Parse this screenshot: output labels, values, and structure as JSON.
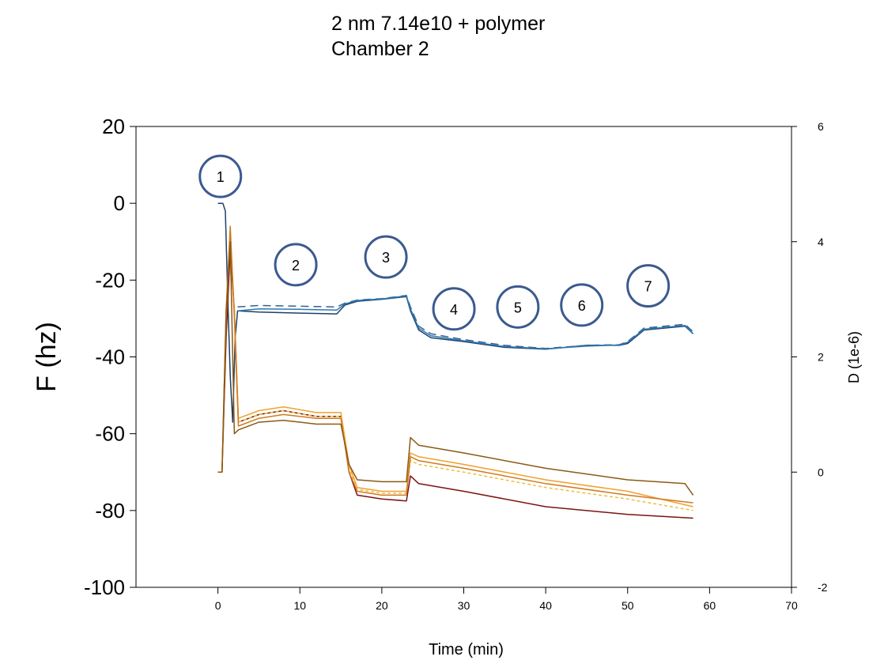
{
  "title": {
    "line1": "2 nm 7.14e10 + polymer",
    "line2": "Chamber 2"
  },
  "chart_data": {
    "type": "line",
    "xlabel": "Time (min)",
    "ylabel": "F (hz)",
    "y2label": "D (1e-6)",
    "xlim": [
      -10,
      70
    ],
    "ylim": [
      -100,
      20
    ],
    "y2lim": [
      -2,
      6
    ],
    "x_ticks": [
      0,
      10,
      20,
      30,
      40,
      50,
      60,
      70
    ],
    "y_ticks": [
      20,
      0,
      -20,
      -40,
      -60,
      -80,
      -100
    ],
    "y2_ticks": [
      6,
      4,
      2,
      0,
      -2
    ],
    "grid": false,
    "annotations": [
      {
        "label": "1",
        "x": 0.3,
        "y": 7
      },
      {
        "label": "2",
        "x": 9.5,
        "y": -16
      },
      {
        "label": "3",
        "x": 20.5,
        "y": -14
      },
      {
        "label": "4",
        "x": 28.8,
        "y": -27.5
      },
      {
        "label": "5",
        "x": 36.6,
        "y": -27
      },
      {
        "label": "6",
        "x": 44.4,
        "y": -26.5
      },
      {
        "label": "7",
        "x": 52.5,
        "y": -21.5
      }
    ],
    "series": [
      {
        "axis": "left",
        "color": "#1f3f6b",
        "points": [
          [
            0,
            0
          ],
          [
            0.6,
            0
          ],
          [
            0.9,
            -2
          ],
          [
            1.2,
            -25
          ],
          [
            1.5,
            -45
          ],
          [
            1.8,
            -57
          ],
          [
            2.1,
            -35
          ],
          [
            2.4,
            -28
          ],
          [
            5,
            -28.3
          ],
          [
            10,
            -28.6
          ],
          [
            14.5,
            -28.8
          ],
          [
            15.5,
            -26.5
          ],
          [
            17,
            -25.5
          ],
          [
            20,
            -25
          ],
          [
            23,
            -24.3
          ],
          [
            23.5,
            -28
          ],
          [
            24.5,
            -33
          ],
          [
            26,
            -35
          ],
          [
            30,
            -36
          ],
          [
            35,
            -37.5
          ],
          [
            40,
            -38
          ],
          [
            45,
            -37
          ],
          [
            49,
            -37
          ],
          [
            50,
            -36.5
          ],
          [
            52,
            -33
          ],
          [
            57,
            -32
          ],
          [
            58,
            -34
          ]
        ]
      },
      {
        "axis": "left",
        "color": "#3c5f8f",
        "dash": "10,6",
        "points": [
          [
            2.4,
            -27
          ],
          [
            5,
            -26.6
          ],
          [
            10,
            -26.8
          ],
          [
            14.5,
            -27
          ],
          [
            15.5,
            -26
          ],
          [
            17,
            -25.2
          ],
          [
            20,
            -24.8
          ],
          [
            23,
            -24
          ],
          [
            23.5,
            -27
          ],
          [
            24.5,
            -32
          ],
          [
            26,
            -34
          ],
          [
            30,
            -35.5
          ],
          [
            35,
            -37
          ],
          [
            40,
            -37.8
          ],
          [
            45,
            -37
          ],
          [
            49,
            -36.8
          ],
          [
            50,
            -36
          ],
          [
            52,
            -32.5
          ],
          [
            57,
            -31.5
          ],
          [
            58,
            -33.5
          ]
        ]
      },
      {
        "axis": "left",
        "color": "#2a7ab0",
        "points": [
          [
            2.4,
            -28
          ],
          [
            5,
            -27.5
          ],
          [
            10,
            -27.6
          ],
          [
            14.5,
            -27.8
          ],
          [
            15.5,
            -26.2
          ],
          [
            17,
            -25.3
          ],
          [
            20,
            -24.9
          ],
          [
            23,
            -24.1
          ],
          [
            23.5,
            -27.5
          ],
          [
            24.5,
            -32.5
          ],
          [
            26,
            -34.5
          ],
          [
            30,
            -35.8
          ],
          [
            35,
            -37.3
          ],
          [
            40,
            -37.9
          ],
          [
            45,
            -37.2
          ],
          [
            49,
            -36.9
          ],
          [
            50,
            -36.2
          ],
          [
            52,
            -32.8
          ],
          [
            57,
            -31.8
          ],
          [
            58,
            -34
          ]
        ]
      },
      {
        "axis": "left",
        "color": "#7a1414",
        "points": [
          [
            0,
            -70
          ],
          [
            0.5,
            -70
          ],
          [
            1,
            -35
          ],
          [
            1.5,
            -12
          ],
          [
            2,
            -28
          ],
          [
            2.5,
            -57
          ],
          [
            5,
            -55
          ],
          [
            8,
            -54
          ],
          [
            12,
            -55.5
          ],
          [
            15,
            -55.5
          ],
          [
            16,
            -70
          ],
          [
            17,
            -76
          ],
          [
            20,
            -77
          ],
          [
            23,
            -77.5
          ],
          [
            23.5,
            -71
          ],
          [
            24.5,
            -73
          ],
          [
            30,
            -75
          ],
          [
            40,
            -79
          ],
          [
            50,
            -81
          ],
          [
            58,
            -82
          ]
        ]
      },
      {
        "axis": "left",
        "color": "#f0a030",
        "points": [
          [
            0,
            -70
          ],
          [
            0.5,
            -70
          ],
          [
            1,
            -30
          ],
          [
            1.5,
            -8
          ],
          [
            2,
            -28
          ],
          [
            2.5,
            -56
          ],
          [
            5,
            -54
          ],
          [
            8,
            -53
          ],
          [
            12,
            -54.5
          ],
          [
            15,
            -54.5
          ],
          [
            16,
            -68
          ],
          [
            17,
            -74
          ],
          [
            20,
            -75
          ],
          [
            23,
            -75
          ],
          [
            23.5,
            -65
          ],
          [
            24.5,
            -66
          ],
          [
            30,
            -68
          ],
          [
            40,
            -72
          ],
          [
            50,
            -75
          ],
          [
            58,
            -79
          ]
        ]
      },
      {
        "axis": "left",
        "color": "#e8c040",
        "dash": "4,3",
        "points": [
          [
            2.5,
            -57
          ],
          [
            5,
            -55
          ],
          [
            8,
            -54
          ],
          [
            12,
            -55.5
          ],
          [
            15,
            -55.5
          ],
          [
            16,
            -69
          ],
          [
            17,
            -74.5
          ],
          [
            20,
            -75.5
          ],
          [
            23,
            -75.5
          ],
          [
            23.5,
            -67
          ],
          [
            24.5,
            -68
          ],
          [
            30,
            -70
          ],
          [
            40,
            -74
          ],
          [
            50,
            -77
          ],
          [
            58,
            -80
          ]
        ]
      },
      {
        "axis": "left",
        "color": "#d07a20",
        "points": [
          [
            0,
            -70
          ],
          [
            0.5,
            -70
          ],
          [
            1,
            -28
          ],
          [
            1.5,
            -6
          ],
          [
            2,
            -30
          ],
          [
            2.5,
            -58
          ],
          [
            5,
            -56
          ],
          [
            8,
            -55
          ],
          [
            12,
            -56
          ],
          [
            15,
            -56
          ],
          [
            16,
            -70
          ],
          [
            17,
            -75
          ],
          [
            20,
            -76
          ],
          [
            23,
            -76
          ],
          [
            23.5,
            -66
          ],
          [
            24.5,
            -67
          ],
          [
            30,
            -69
          ],
          [
            40,
            -73
          ],
          [
            50,
            -76
          ],
          [
            58,
            -78
          ]
        ]
      },
      {
        "axis": "left",
        "color": "#8a5a14",
        "points": [
          [
            0,
            -70
          ],
          [
            0.5,
            -70
          ],
          [
            1,
            -28
          ],
          [
            1.5,
            -10
          ],
          [
            2,
            -60
          ],
          [
            2.5,
            -59
          ],
          [
            5,
            -57
          ],
          [
            8,
            -56.5
          ],
          [
            12,
            -57.5
          ],
          [
            15,
            -57.5
          ],
          [
            16,
            -68
          ],
          [
            17,
            -72
          ],
          [
            20,
            -72.5
          ],
          [
            23,
            -72.5
          ],
          [
            23.5,
            -61
          ],
          [
            24.5,
            -63
          ],
          [
            30,
            -65
          ],
          [
            40,
            -69
          ],
          [
            50,
            -72
          ],
          [
            57,
            -73
          ],
          [
            58,
            -76
          ]
        ]
      }
    ]
  }
}
